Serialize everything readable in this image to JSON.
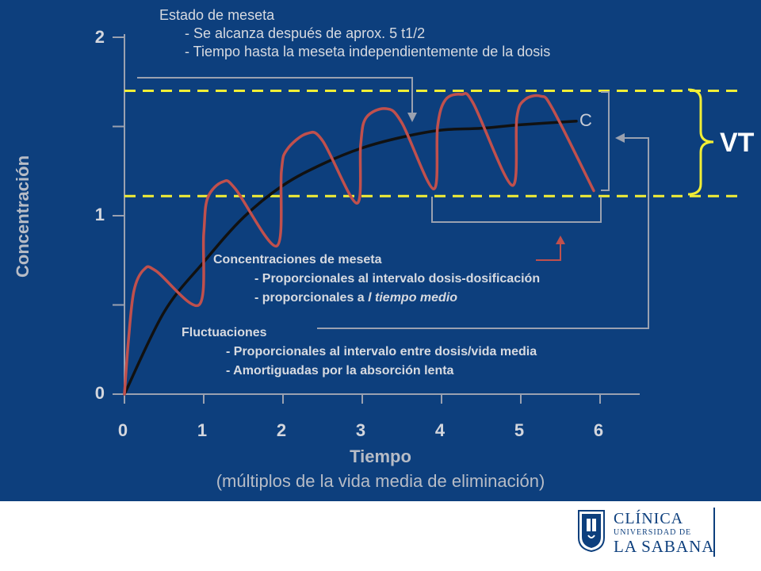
{
  "chart_data": {
    "type": "line",
    "xlabel": "Tiempo",
    "xlabel_sub": "(múltiplos de la vida media de eliminación)",
    "ylabel": "Concentración",
    "xlim": [
      0,
      6
    ],
    "ylim": [
      0,
      2
    ],
    "x_ticks": [
      "0",
      "1",
      "2",
      "3",
      "4",
      "5",
      "6"
    ],
    "y_ticks": [
      "0",
      "1",
      "2"
    ],
    "grid": false,
    "series": [
      {
        "name": "C",
        "style": "smooth",
        "color": "#111111",
        "points": [
          [
            0,
            0
          ],
          [
            0.5,
            0.46
          ],
          [
            1,
            0.74
          ],
          [
            1.5,
            0.99
          ],
          [
            2,
            1.17
          ],
          [
            2.5,
            1.29
          ],
          [
            3,
            1.38
          ],
          [
            3.5,
            1.44
          ],
          [
            4,
            1.48
          ],
          [
            4.5,
            1.49
          ],
          [
            5,
            1.51
          ],
          [
            5.7,
            1.53
          ]
        ]
      },
      {
        "style": "sawtooth",
        "color": "#c0504d",
        "points": [
          [
            0,
            0
          ],
          [
            0.05,
            0.3
          ],
          [
            0.12,
            0.58
          ],
          [
            0.25,
            0.7
          ],
          [
            0.4,
            0.69
          ],
          [
            0.94,
            0.5
          ],
          [
            1.0,
            0.9
          ],
          [
            1.05,
            1.1
          ],
          [
            1.24,
            1.19
          ],
          [
            1.4,
            1.15
          ],
          [
            1.92,
            0.83
          ],
          [
            1.98,
            1.25
          ],
          [
            2.05,
            1.37
          ],
          [
            2.3,
            1.46
          ],
          [
            2.5,
            1.42
          ],
          [
            2.93,
            1.07
          ],
          [
            2.98,
            1.4
          ],
          [
            3.05,
            1.55
          ],
          [
            3.3,
            1.6
          ],
          [
            3.5,
            1.52
          ],
          [
            3.9,
            1.15
          ],
          [
            3.95,
            1.5
          ],
          [
            4.05,
            1.65
          ],
          [
            4.25,
            1.68
          ],
          [
            4.4,
            1.63
          ],
          [
            4.89,
            1.17
          ],
          [
            4.95,
            1.55
          ],
          [
            5.05,
            1.65
          ],
          [
            5.25,
            1.67
          ],
          [
            5.4,
            1.6
          ],
          [
            5.92,
            1.14
          ]
        ]
      }
    ],
    "reference_lines": {
      "upper_y": 1.7,
      "lower_y": 1.11,
      "color": "#f1ee36",
      "style": "dashed"
    },
    "annotations": [
      {
        "id": "estado",
        "lines": [
          "Estado de meseta",
          "- Se alcanza después de aprox. 5 t1/2",
          "- Tiempo hasta la meseta independientemente de la dosis"
        ]
      },
      {
        "id": "concentraciones",
        "lines": [
          "Concentraciones de meseta",
          "- Proporcionales al intervalo dosis-dosificación"
        ],
        "line3_prefix": "- proporcionales a ",
        "line3_italic": "l tiempo medio"
      },
      {
        "id": "fluctuaciones",
        "lines": [
          "Fluctuaciones",
          "- Proporcionales al intervalo entre dosis/vida media",
          "- Amortiguadas por la absorción lenta"
        ]
      }
    ],
    "labels": {
      "curve": "C",
      "range": "VT"
    }
  },
  "colors": {
    "background": "#0d3f7d",
    "axis": "#9aa1b0",
    "bracket_gray": "#9aa1b0",
    "bracket_yellow": "#f1ee36",
    "red": "#c0504d",
    "black": "#111111"
  },
  "logo": {
    "line1": "CLÍNICA",
    "line2": "UNIVERSIDAD DE",
    "line3": "LA SABANA",
    "emblem_icon": "shield-emblem"
  }
}
